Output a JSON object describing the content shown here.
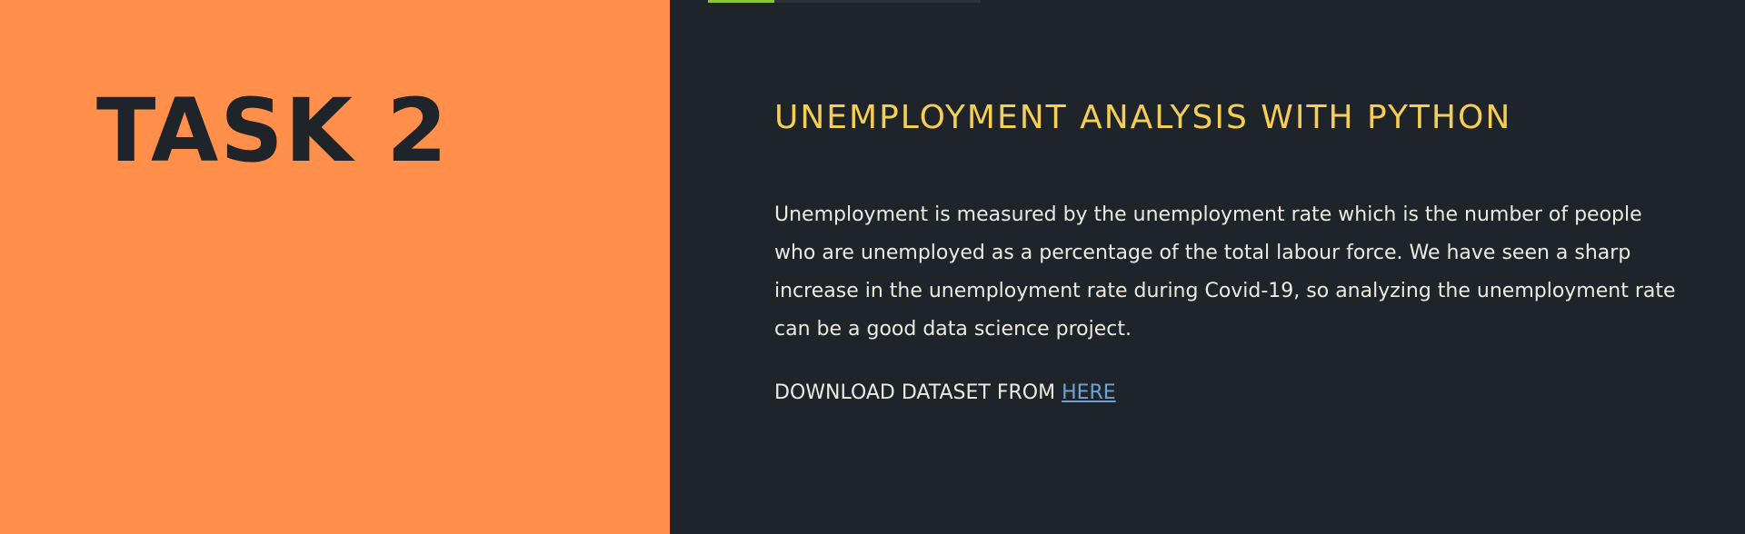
{
  "left_panel": {
    "title": "TASK 2",
    "background_color": "#ff8f4a"
  },
  "right_panel": {
    "heading": "UNEMPLOYMENT ANALYSIS WITH PYTHON",
    "description": "Unemployment is measured by the unemployment rate which is the number of people who are unemployed as a percentage of the total labour force. We have seen a sharp increase in the unemployment rate during Covid-19, so analyzing the unemployment rate can be a good data science project.",
    "download_prefix": "DOWNLOAD DATASET FROM ",
    "download_link_label": "HERE",
    "background_color": "#1e2429",
    "heading_color": "#f5cf55",
    "link_color": "#6ea3d8",
    "accent_color": "#8cc63f"
  }
}
